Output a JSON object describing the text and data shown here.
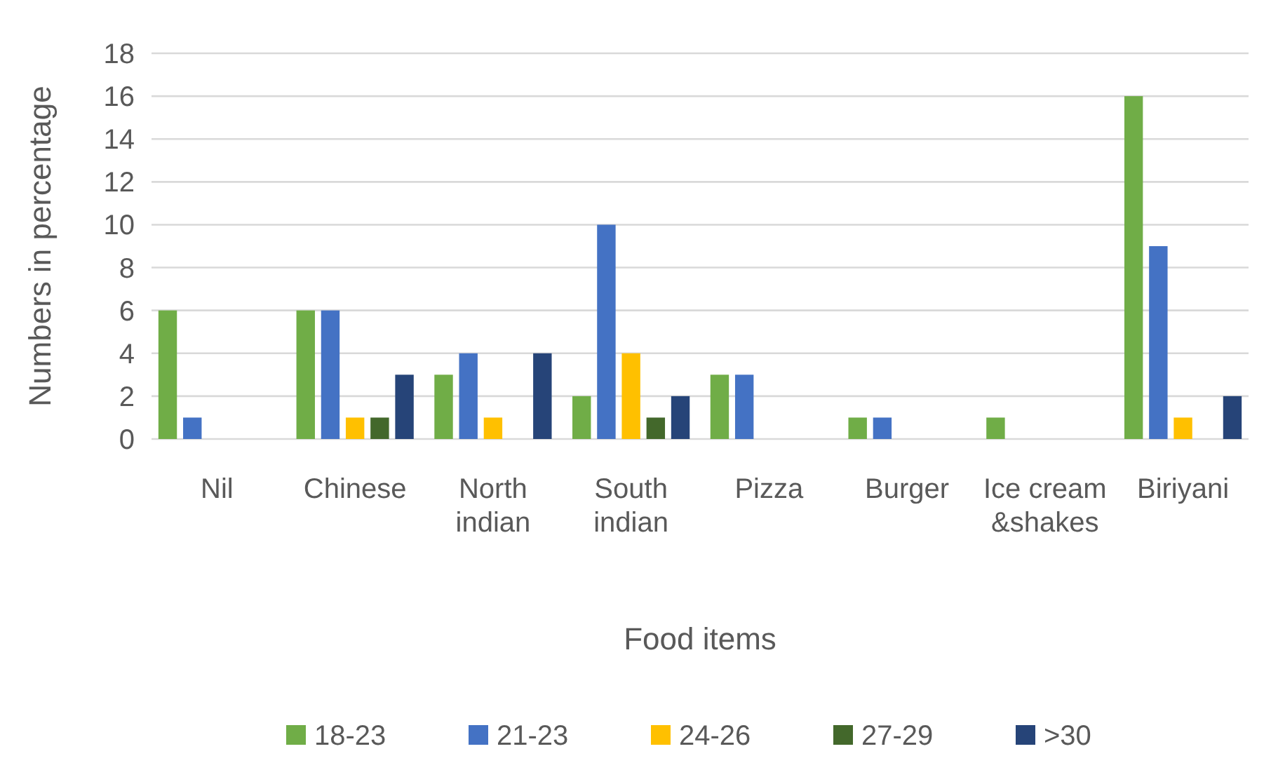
{
  "chart_data": {
    "type": "bar",
    "xlabel": "Food items",
    "ylabel": "Numbers in percentage",
    "categories": [
      "Nil",
      "Chinese",
      "North indian",
      "South indian",
      "Pizza",
      "Burger",
      "Ice cream &shakes",
      "Biriyani"
    ],
    "series": [
      {
        "name": "18-23",
        "color": "#70ad47",
        "values": [
          6,
          6,
          3,
          2,
          3,
          1,
          1,
          16
        ]
      },
      {
        "name": "21-23",
        "color": "#4472c4",
        "values": [
          1,
          6,
          4,
          10,
          3,
          1,
          0,
          9
        ]
      },
      {
        "name": "24-26",
        "color": "#ffc000",
        "values": [
          0,
          1,
          1,
          4,
          0,
          0,
          0,
          1
        ]
      },
      {
        "name": "27-29",
        "color": "#43682b",
        "values": [
          0,
          1,
          0,
          1,
          0,
          0,
          0,
          0
        ]
      },
      {
        "name": ">30",
        "color": "#264478",
        "values": [
          0,
          3,
          4,
          2,
          0,
          0,
          0,
          2
        ]
      }
    ],
    "ylim": [
      0,
      18
    ],
    "yticks": [
      0,
      2,
      4,
      6,
      8,
      10,
      12,
      14,
      16,
      18
    ],
    "grid": "y",
    "legend": "bottom"
  }
}
